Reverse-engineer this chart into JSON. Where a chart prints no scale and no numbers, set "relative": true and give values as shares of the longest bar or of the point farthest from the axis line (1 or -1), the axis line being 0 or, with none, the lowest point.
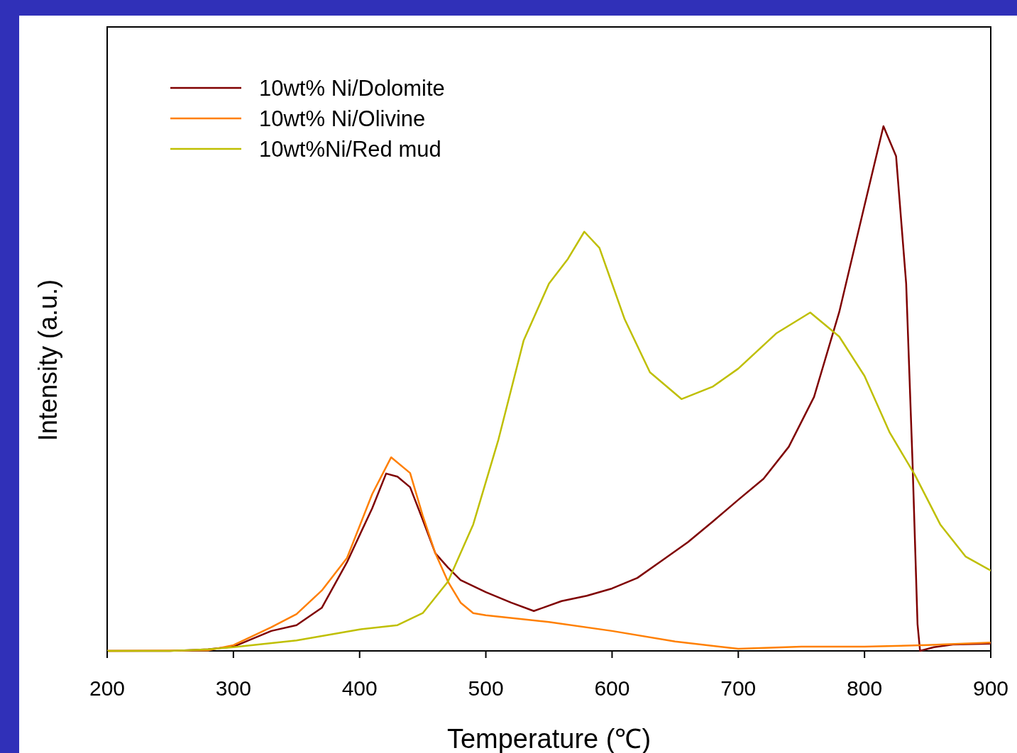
{
  "chart_data": {
    "type": "line",
    "relative": true,
    "xlabel": "Temperature (℃)",
    "ylabel": "Intensity (a.u.)",
    "xlim": [
      200,
      900
    ],
    "xticks": [
      200,
      300,
      400,
      500,
      600,
      700,
      800,
      900
    ],
    "legend": "top left",
    "grid": false,
    "marker": "none",
    "line_style": "solid",
    "series": [
      {
        "name": "10wt% Ni/Dolomite",
        "color": "#7f0000",
        "x": [
          200,
          250,
          280,
          300,
          330,
          350,
          370,
          390,
          410,
          421,
          430,
          440,
          450,
          460,
          470,
          480,
          500,
          520,
          538,
          560,
          580,
          600,
          620,
          640,
          660,
          680,
          700,
          720,
          740,
          760,
          780,
          800,
          815,
          825,
          833,
          838,
          842,
          844,
          855,
          870,
          900
        ],
        "values": [
          0,
          0,
          0.003,
          0.008,
          0.038,
          0.049,
          0.082,
          0.169,
          0.272,
          0.338,
          0.332,
          0.312,
          0.25,
          0.186,
          0.159,
          0.135,
          0.112,
          0.092,
          0.076,
          0.095,
          0.105,
          0.119,
          0.139,
          0.173,
          0.207,
          0.247,
          0.288,
          0.328,
          0.389,
          0.484,
          0.646,
          0.849,
          1,
          0.943,
          0.7,
          0.362,
          0.051,
          0,
          0.007,
          0.012,
          0.014
        ]
      },
      {
        "name": "10wt% Ni/Olivine",
        "color": "#ff7f00",
        "x": [
          200,
          280,
          300,
          330,
          350,
          370,
          390,
          410,
          425,
          440,
          450,
          460,
          470,
          480,
          490,
          500,
          550,
          600,
          650,
          700,
          750,
          800,
          850,
          900
        ],
        "values": [
          0,
          0.001,
          0.011,
          0.045,
          0.07,
          0.115,
          0.177,
          0.299,
          0.369,
          0.339,
          0.258,
          0.186,
          0.132,
          0.092,
          0.072,
          0.068,
          0.055,
          0.038,
          0.018,
          0.004,
          0.008,
          0.008,
          0.011,
          0.016
        ]
      },
      {
        "name": "10wt%Ni/Red mud",
        "color": "#bfbf00",
        "x": [
          200,
          250,
          280,
          300,
          350,
          400,
          430,
          450,
          470,
          490,
          510,
          530,
          550,
          565,
          578,
          590,
          600,
          610,
          630,
          655,
          680,
          700,
          730,
          757,
          780,
          800,
          820,
          840,
          860,
          880,
          900
        ],
        "values": [
          0,
          0,
          0.003,
          0.007,
          0.02,
          0.041,
          0.049,
          0.072,
          0.132,
          0.241,
          0.403,
          0.592,
          0.7,
          0.747,
          0.799,
          0.768,
          0.7,
          0.632,
          0.531,
          0.48,
          0.504,
          0.538,
          0.605,
          0.645,
          0.599,
          0.524,
          0.416,
          0.335,
          0.241,
          0.18,
          0.153
        ]
      }
    ]
  }
}
